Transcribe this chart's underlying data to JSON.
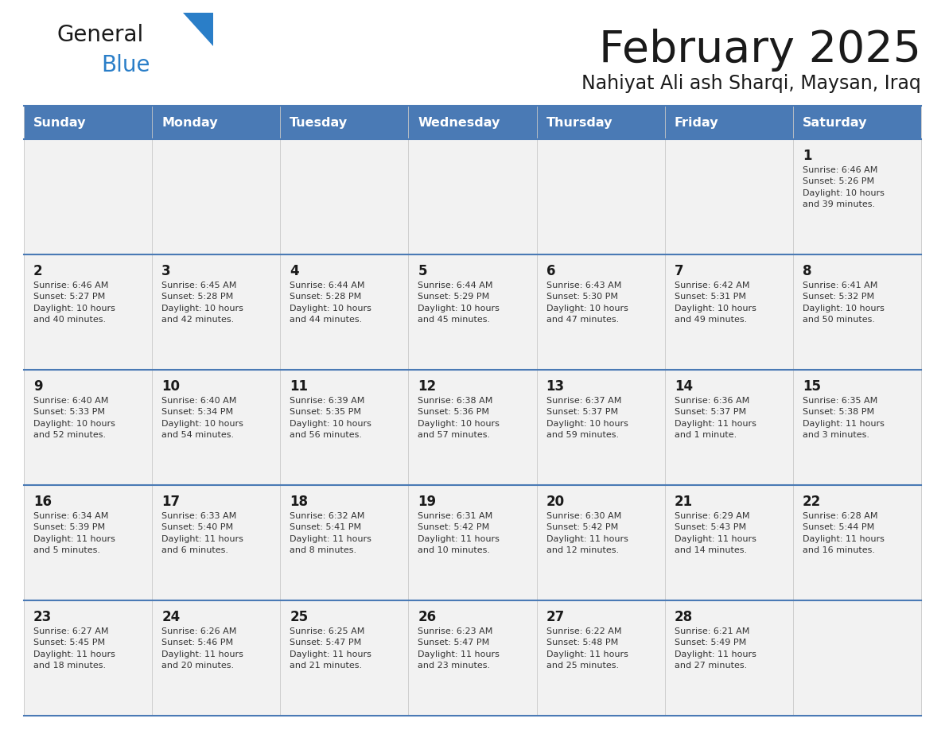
{
  "title": "February 2025",
  "subtitle": "Nahiyat Ali ash Sharqi, Maysan, Iraq",
  "header_bg_color": "#4a7ab5",
  "header_text_color": "#ffffff",
  "row_bg_color": "#f2f2f2",
  "cell_bg_color": "#ffffff",
  "day_headers": [
    "Sunday",
    "Monday",
    "Tuesday",
    "Wednesday",
    "Thursday",
    "Friday",
    "Saturday"
  ],
  "calendar_data": [
    [
      {
        "day": "",
        "info": ""
      },
      {
        "day": "",
        "info": ""
      },
      {
        "day": "",
        "info": ""
      },
      {
        "day": "",
        "info": ""
      },
      {
        "day": "",
        "info": ""
      },
      {
        "day": "",
        "info": ""
      },
      {
        "day": "1",
        "info": "Sunrise: 6:46 AM\nSunset: 5:26 PM\nDaylight: 10 hours\nand 39 minutes."
      }
    ],
    [
      {
        "day": "2",
        "info": "Sunrise: 6:46 AM\nSunset: 5:27 PM\nDaylight: 10 hours\nand 40 minutes."
      },
      {
        "day": "3",
        "info": "Sunrise: 6:45 AM\nSunset: 5:28 PM\nDaylight: 10 hours\nand 42 minutes."
      },
      {
        "day": "4",
        "info": "Sunrise: 6:44 AM\nSunset: 5:28 PM\nDaylight: 10 hours\nand 44 minutes."
      },
      {
        "day": "5",
        "info": "Sunrise: 6:44 AM\nSunset: 5:29 PM\nDaylight: 10 hours\nand 45 minutes."
      },
      {
        "day": "6",
        "info": "Sunrise: 6:43 AM\nSunset: 5:30 PM\nDaylight: 10 hours\nand 47 minutes."
      },
      {
        "day": "7",
        "info": "Sunrise: 6:42 AM\nSunset: 5:31 PM\nDaylight: 10 hours\nand 49 minutes."
      },
      {
        "day": "8",
        "info": "Sunrise: 6:41 AM\nSunset: 5:32 PM\nDaylight: 10 hours\nand 50 minutes."
      }
    ],
    [
      {
        "day": "9",
        "info": "Sunrise: 6:40 AM\nSunset: 5:33 PM\nDaylight: 10 hours\nand 52 minutes."
      },
      {
        "day": "10",
        "info": "Sunrise: 6:40 AM\nSunset: 5:34 PM\nDaylight: 10 hours\nand 54 minutes."
      },
      {
        "day": "11",
        "info": "Sunrise: 6:39 AM\nSunset: 5:35 PM\nDaylight: 10 hours\nand 56 minutes."
      },
      {
        "day": "12",
        "info": "Sunrise: 6:38 AM\nSunset: 5:36 PM\nDaylight: 10 hours\nand 57 minutes."
      },
      {
        "day": "13",
        "info": "Sunrise: 6:37 AM\nSunset: 5:37 PM\nDaylight: 10 hours\nand 59 minutes."
      },
      {
        "day": "14",
        "info": "Sunrise: 6:36 AM\nSunset: 5:37 PM\nDaylight: 11 hours\nand 1 minute."
      },
      {
        "day": "15",
        "info": "Sunrise: 6:35 AM\nSunset: 5:38 PM\nDaylight: 11 hours\nand 3 minutes."
      }
    ],
    [
      {
        "day": "16",
        "info": "Sunrise: 6:34 AM\nSunset: 5:39 PM\nDaylight: 11 hours\nand 5 minutes."
      },
      {
        "day": "17",
        "info": "Sunrise: 6:33 AM\nSunset: 5:40 PM\nDaylight: 11 hours\nand 6 minutes."
      },
      {
        "day": "18",
        "info": "Sunrise: 6:32 AM\nSunset: 5:41 PM\nDaylight: 11 hours\nand 8 minutes."
      },
      {
        "day": "19",
        "info": "Sunrise: 6:31 AM\nSunset: 5:42 PM\nDaylight: 11 hours\nand 10 minutes."
      },
      {
        "day": "20",
        "info": "Sunrise: 6:30 AM\nSunset: 5:42 PM\nDaylight: 11 hours\nand 12 minutes."
      },
      {
        "day": "21",
        "info": "Sunrise: 6:29 AM\nSunset: 5:43 PM\nDaylight: 11 hours\nand 14 minutes."
      },
      {
        "day": "22",
        "info": "Sunrise: 6:28 AM\nSunset: 5:44 PM\nDaylight: 11 hours\nand 16 minutes."
      }
    ],
    [
      {
        "day": "23",
        "info": "Sunrise: 6:27 AM\nSunset: 5:45 PM\nDaylight: 11 hours\nand 18 minutes."
      },
      {
        "day": "24",
        "info": "Sunrise: 6:26 AM\nSunset: 5:46 PM\nDaylight: 11 hours\nand 20 minutes."
      },
      {
        "day": "25",
        "info": "Sunrise: 6:25 AM\nSunset: 5:47 PM\nDaylight: 11 hours\nand 21 minutes."
      },
      {
        "day": "26",
        "info": "Sunrise: 6:23 AM\nSunset: 5:47 PM\nDaylight: 11 hours\nand 23 minutes."
      },
      {
        "day": "27",
        "info": "Sunrise: 6:22 AM\nSunset: 5:48 PM\nDaylight: 11 hours\nand 25 minutes."
      },
      {
        "day": "28",
        "info": "Sunrise: 6:21 AM\nSunset: 5:49 PM\nDaylight: 11 hours\nand 27 minutes."
      },
      {
        "day": "",
        "info": ""
      }
    ]
  ],
  "logo_color1": "#1a1a1a",
  "logo_color2": "#2a7ec8",
  "logo_triangle_color": "#2a7ec8",
  "title_color": "#1a1a1a",
  "subtitle_color": "#1a1a1a",
  "day_number_color": "#1a1a1a",
  "info_text_color": "#333333",
  "separator_line_color": "#4a7ab5",
  "n_rows": 5,
  "n_cols": 7
}
